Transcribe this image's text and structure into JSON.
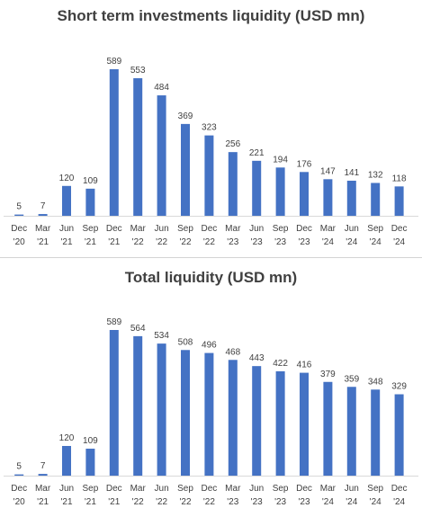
{
  "chart_data": [
    {
      "type": "bar",
      "title": "Short term investments liquidity (USD mn)",
      "categories": [
        "Dec '20",
        "Mar '21",
        "Jun '21",
        "Sep '21",
        "Dec '21",
        "Mar '22",
        "Jun '22",
        "Sep '22",
        "Dec '22",
        "Mar '23",
        "Jun '23",
        "Sep '23",
        "Dec '23",
        "Mar '24",
        "Jun '24",
        "Sep '24",
        "Dec '24"
      ],
      "category_lines": [
        [
          "Dec",
          "'20"
        ],
        [
          "Mar",
          "'21"
        ],
        [
          "Jun",
          "'21"
        ],
        [
          "Sep",
          "'21"
        ],
        [
          "Dec",
          "'21"
        ],
        [
          "Mar",
          "'22"
        ],
        [
          "Jun",
          "'22"
        ],
        [
          "Sep",
          "'22"
        ],
        [
          "Dec",
          "'22"
        ],
        [
          "Mar",
          "'23"
        ],
        [
          "Jun",
          "'23"
        ],
        [
          "Sep",
          "'23"
        ],
        [
          "Dec",
          "'23"
        ],
        [
          "Mar",
          "'24"
        ],
        [
          "Jun",
          "'24"
        ],
        [
          "Sep",
          "'24"
        ],
        [
          "Dec",
          "'24"
        ]
      ],
      "values": [
        5,
        7,
        120,
        109,
        589,
        553,
        484,
        369,
        323,
        256,
        221,
        194,
        176,
        147,
        141,
        132,
        118
      ],
      "ylim": [
        0,
        589
      ],
      "bar_color": "#4472c4",
      "grid": false
    },
    {
      "type": "bar",
      "title": "Total liquidity (USD mn)",
      "categories": [
        "Dec '20",
        "Mar '21",
        "Jun '21",
        "Sep '21",
        "Dec '21",
        "Mar '22",
        "Jun '22",
        "Sep '22",
        "Dec '22",
        "Mar '23",
        "Jun '23",
        "Sep '23",
        "Dec '23",
        "Mar '24",
        "Jun '24",
        "Sep '24",
        "Dec '24"
      ],
      "category_lines": [
        [
          "Dec",
          "'20"
        ],
        [
          "Mar",
          "'21"
        ],
        [
          "Jun",
          "'21"
        ],
        [
          "Sep",
          "'21"
        ],
        [
          "Dec",
          "'21"
        ],
        [
          "Mar",
          "'22"
        ],
        [
          "Jun",
          "'22"
        ],
        [
          "Sep",
          "'22"
        ],
        [
          "Dec",
          "'22"
        ],
        [
          "Mar",
          "'23"
        ],
        [
          "Jun",
          "'23"
        ],
        [
          "Sep",
          "'23"
        ],
        [
          "Dec",
          "'23"
        ],
        [
          "Mar",
          "'24"
        ],
        [
          "Jun",
          "'24"
        ],
        [
          "Sep",
          "'24"
        ],
        [
          "Dec",
          "'24"
        ]
      ],
      "values": [
        5,
        7,
        120,
        109,
        589,
        564,
        534,
        508,
        496,
        468,
        443,
        422,
        416,
        379,
        359,
        348,
        329
      ],
      "ylim": [
        0,
        589
      ],
      "bar_color": "#4472c4",
      "grid": false
    }
  ]
}
